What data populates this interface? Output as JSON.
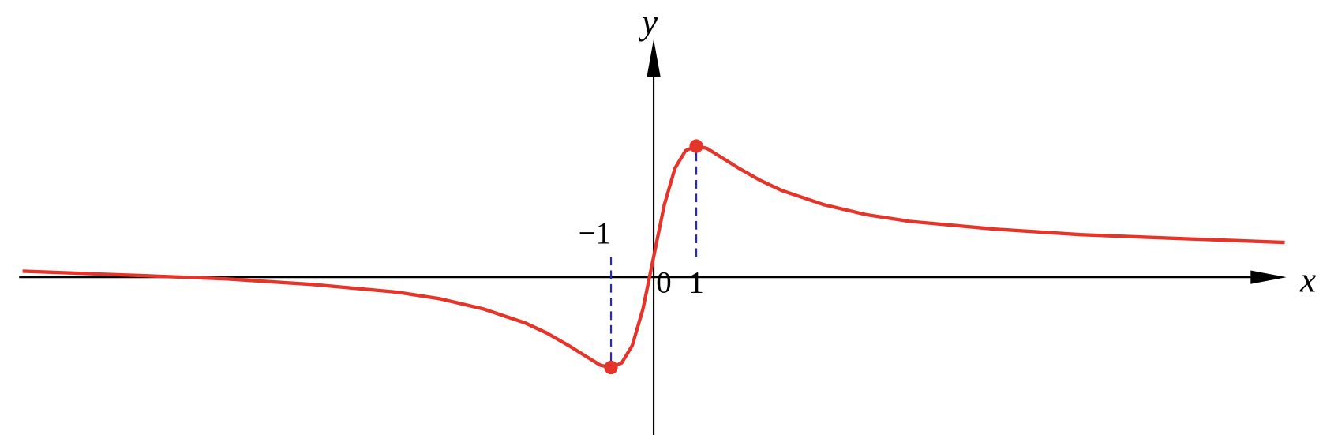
{
  "chart_data": {
    "type": "line",
    "x_label": "x",
    "y_label": "y",
    "xlim": [
      -14.88,
      14.84
    ],
    "ylim": [
      -1.61,
      2.32
    ],
    "xticks": [
      {
        "value": -1,
        "label": "−1"
      },
      0,
      1
    ],
    "x": [
      -14.8,
      -12,
      -10,
      -8,
      -6,
      -5,
      -4,
      -3,
      -2.5,
      -2,
      -1.5,
      -1.25,
      -1,
      -0.75,
      -0.5,
      -0.25,
      0,
      0.25,
      0.5,
      0.75,
      1,
      1.25,
      1.5,
      2,
      2.5,
      3,
      4,
      5,
      6,
      8,
      10,
      12,
      14.8
    ],
    "series": [
      {
        "color": "#e5352b",
        "values": [
          -0.13,
          -0.17,
          -0.2,
          -0.25,
          -0.32,
          -0.38,
          -0.47,
          -0.6,
          -0.69,
          -0.8,
          -0.92,
          -0.98,
          -1,
          -0.96,
          -0.8,
          -0.47,
          0,
          0.47,
          0.8,
          0.96,
          1,
          0.98,
          0.92,
          0.8,
          0.69,
          0.6,
          0.47,
          0.38,
          0.32,
          0.25,
          0.2,
          0.17,
          0.13
        ]
      }
    ],
    "points": {
      "color": "#e5352b",
      "guide_color": "#2323e0",
      "x": [
        -1,
        1
      ],
      "values": [
        -1,
        1
      ]
    }
  }
}
